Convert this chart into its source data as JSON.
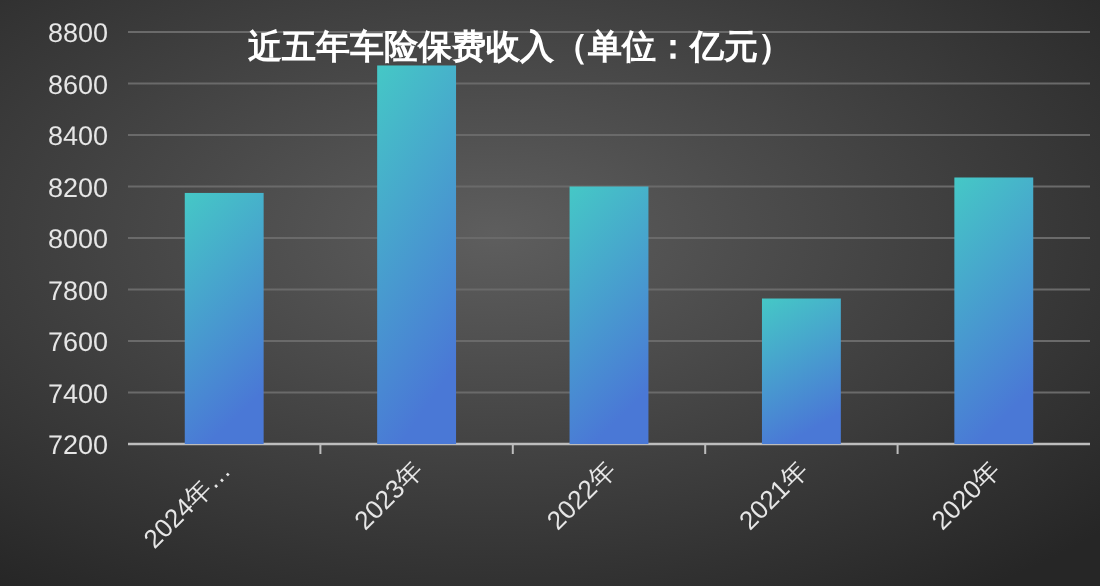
{
  "chart_data": {
    "type": "bar",
    "title": "近五年车险保费收入（单位：亿元）",
    "categories": [
      "2024年…",
      "2023年",
      "2022年",
      "2021年",
      "2020年"
    ],
    "values": [
      8175,
      8670,
      8200,
      7765,
      8235
    ],
    "color": "#45c8c6",
    "ylim": [
      7200,
      8800
    ],
    "yticks": [
      7200,
      7400,
      7600,
      7800,
      8000,
      8200,
      8400,
      8600,
      8800
    ],
    "grid": "y"
  }
}
